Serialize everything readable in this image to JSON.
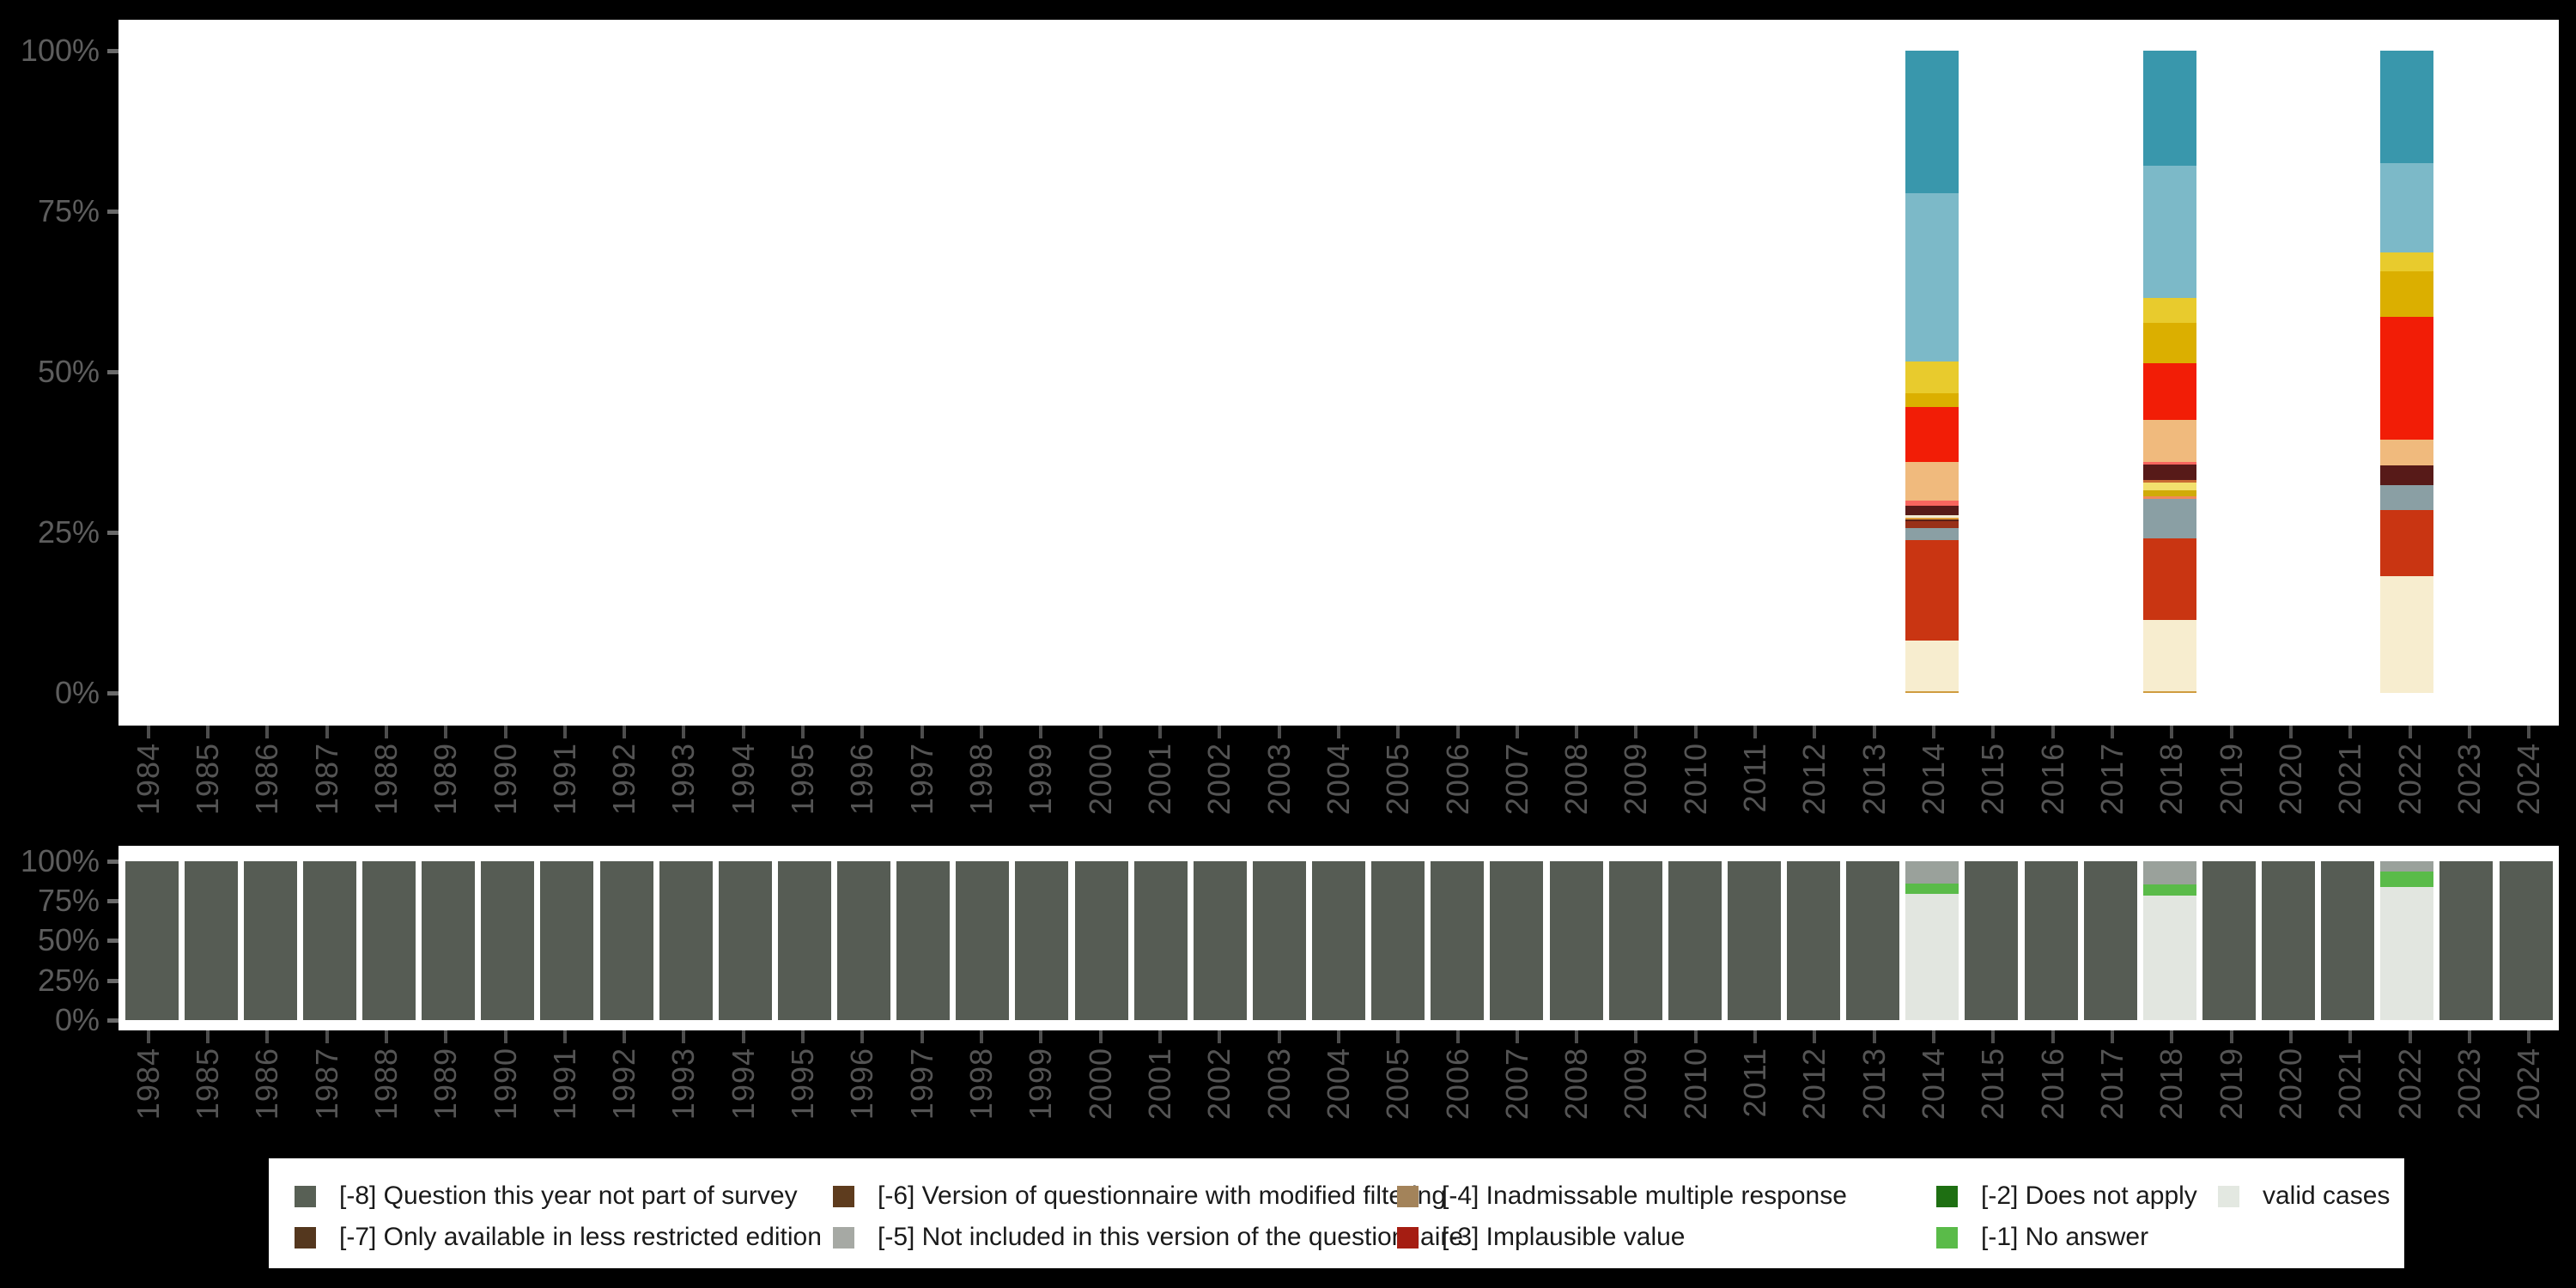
{
  "page": {
    "background_color": "#000000",
    "plot_background_color": "#ffffff",
    "axis_text_color": "#555555"
  },
  "years": [
    "1984",
    "1985",
    "1986",
    "1987",
    "1988",
    "1989",
    "1990",
    "1991",
    "1992",
    "1993",
    "1994",
    "1995",
    "1996",
    "1997",
    "1998",
    "1999",
    "2000",
    "2001",
    "2002",
    "2003",
    "2004",
    "2005",
    "2006",
    "2007",
    "2008",
    "2009",
    "2010",
    "2011",
    "2012",
    "2013",
    "2014",
    "2015",
    "2016",
    "2017",
    "2018",
    "2019",
    "2020",
    "2021",
    "2022",
    "2023",
    "2024"
  ],
  "y_ticks": [
    "100%",
    "75%",
    "50%",
    "25%",
    "0%"
  ],
  "chart_data": [
    {
      "type": "bar",
      "subtype": "percent-stacked",
      "name": "value-distribution-by-year",
      "x": [
        "1984",
        "1985",
        "1986",
        "1987",
        "1988",
        "1989",
        "1990",
        "1991",
        "1992",
        "1993",
        "1994",
        "1995",
        "1996",
        "1997",
        "1998",
        "1999",
        "2000",
        "2001",
        "2002",
        "2003",
        "2004",
        "2005",
        "2006",
        "2007",
        "2008",
        "2009",
        "2010",
        "2011",
        "2012",
        "2013",
        "2014",
        "2015",
        "2016",
        "2017",
        "2018",
        "2019",
        "2020",
        "2021",
        "2022",
        "2023",
        "2024"
      ],
      "ylim": [
        0,
        100
      ],
      "ytick_labels": [
        "100%",
        "75%",
        "50%",
        "25%",
        "0%"
      ],
      "grid": false,
      "bars_note": "segments listed top-to-bottom as [color, percent]; years not listed have no bar",
      "bars": {
        "2014": [
          [
            "#3997ac",
            22.2
          ],
          [
            "#7cb9c8",
            26.2
          ],
          [
            "#e8cb2d",
            4.9
          ],
          [
            "#dbaf00",
            2.2
          ],
          [
            "#f21d06",
            8.5
          ],
          [
            "#f0ba7d",
            6.0
          ],
          [
            "#f8665e",
            0.8
          ],
          [
            "#571a18",
            1.6
          ],
          [
            "#f2ead3",
            0.3
          ],
          [
            "#e09b38",
            0.3
          ],
          [
            "#5a2016",
            0.3
          ],
          [
            "#983018",
            1.0
          ],
          [
            "#8a9fa4",
            1.9
          ],
          [
            "#c93512",
            15.6
          ],
          [
            "#f7edcf",
            7.9
          ],
          [
            "#cf9c3f",
            0.3
          ]
        ],
        "2018": [
          [
            "#3997ac",
            17.9
          ],
          [
            "#7cb9c8",
            20.6
          ],
          [
            "#e8cb2d",
            3.9
          ],
          [
            "#dbaf00",
            6.3
          ],
          [
            "#f21d06",
            8.8
          ],
          [
            "#f0ba7d",
            6.6
          ],
          [
            "#f8665e",
            0.3
          ],
          [
            "#571a18",
            2.5
          ],
          [
            "#c96a33",
            0.4
          ],
          [
            "#f2e06e",
            1.1
          ],
          [
            "#d0ab08",
            1.0
          ],
          [
            "#f08a5c",
            0.4
          ],
          [
            "#8a9fa4",
            6.2
          ],
          [
            "#c93512",
            12.6
          ],
          [
            "#f7edcf",
            11.1
          ],
          [
            "#cf9c3f",
            0.3
          ]
        ],
        "2022": [
          [
            "#3997ac",
            17.5
          ],
          [
            "#7cb9c8",
            13.9
          ],
          [
            "#e8cb2d",
            3.0
          ],
          [
            "#dbaf00",
            7.0
          ],
          [
            "#f21d06",
            19.1
          ],
          [
            "#f0ba7d",
            4.1
          ],
          [
            "#571a18",
            3.1
          ],
          [
            "#8a9fa4",
            3.8
          ],
          [
            "#c93512",
            10.3
          ],
          [
            "#f7edcf",
            18.2
          ]
        ]
      }
    },
    {
      "type": "bar",
      "subtype": "percent-stacked",
      "name": "missing-vs-valid-cases-by-year",
      "x": [
        "1984",
        "1985",
        "1986",
        "1987",
        "1988",
        "1989",
        "1990",
        "1991",
        "1992",
        "1993",
        "1994",
        "1995",
        "1996",
        "1997",
        "1998",
        "1999",
        "2000",
        "2001",
        "2002",
        "2003",
        "2004",
        "2005",
        "2006",
        "2007",
        "2008",
        "2009",
        "2010",
        "2011",
        "2012",
        "2013",
        "2014",
        "2015",
        "2016",
        "2017",
        "2018",
        "2019",
        "2020",
        "2021",
        "2022",
        "2023",
        "2024"
      ],
      "ylim": [
        0,
        100
      ],
      "ytick_labels": [
        "100%",
        "75%",
        "50%",
        "25%",
        "0%"
      ],
      "grid": false,
      "default_bar": [
        [
          "#565c54",
          100
        ]
      ],
      "bars_note": "default bar = [-8] question this year not part of survey; segments top-to-bottom",
      "bars": {
        "2014": [
          [
            "#9aa19b",
            14.3
          ],
          [
            "#5abb49",
            6.1
          ],
          [
            "#e2e6e0",
            79.6
          ]
        ],
        "2018": [
          [
            "#9aa19b",
            14.7
          ],
          [
            "#5abb49",
            6.8
          ],
          [
            "#e2e6e0",
            78.5
          ]
        ],
        "2022": [
          [
            "#9aa19b",
            6.6
          ],
          [
            "#5abb49",
            9.8
          ],
          [
            "#e2e6e0",
            83.6
          ]
        ]
      }
    }
  ],
  "legend": {
    "position": "bottom",
    "items": [
      {
        "label": "[-8] Question this year not part of survey",
        "color": "#586055"
      },
      {
        "label": "[-7] Only available in less restricted edition",
        "color": "#54371e"
      },
      {
        "label": "[-6] Version of questionnaire with modified filtering",
        "color": "#5e3c1e"
      },
      {
        "label": "[-5] Not included in this version of the questionnaire",
        "color": "#a6a9a4"
      },
      {
        "label": "[-4] Inadmissable multiple response",
        "color": "#a3835a"
      },
      {
        "label": "[-3] Implausible value",
        "color": "#a51d12"
      },
      {
        "label": "[-2] Does not apply",
        "color": "#1e6f12"
      },
      {
        "label": "[-1] No answer",
        "color": "#5abb49"
      },
      {
        "label": "valid cases",
        "color": "#e3e8e1"
      }
    ],
    "column_pairs": [
      [
        0,
        1
      ],
      [
        2,
        3
      ],
      [
        4,
        5
      ],
      [
        6,
        7
      ],
      [
        8
      ]
    ]
  }
}
